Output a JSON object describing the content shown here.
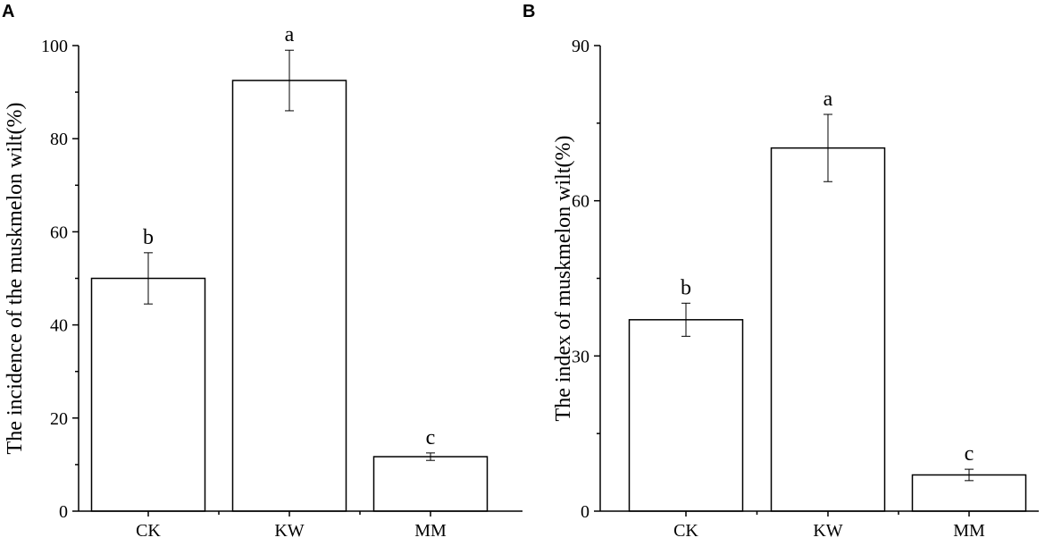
{
  "chart_data": [
    {
      "panel": "A",
      "type": "bar",
      "categories": [
        "CK",
        "KW",
        "MM"
      ],
      "values": [
        50,
        92.5,
        11.7
      ],
      "errors": [
        5.5,
        6.5,
        0.8
      ],
      "significance": [
        "b",
        "a",
        "c"
      ],
      "title": "",
      "xlabel": "",
      "ylabel": "The incidence of the muskmelon wilt(%)",
      "ylim": [
        0,
        100
      ],
      "yticks": [
        0,
        20,
        40,
        60,
        80,
        100
      ],
      "grid": false
    },
    {
      "panel": "B",
      "type": "bar",
      "categories": [
        "CK",
        "KW",
        "MM"
      ],
      "values": [
        37,
        70.2,
        7
      ],
      "errors": [
        3.2,
        6.5,
        1.1
      ],
      "significance": [
        "b",
        "a",
        "c"
      ],
      "title": "",
      "xlabel": "",
      "ylabel": "The index of muskmelon wilt(%)",
      "ylim": [
        0,
        90
      ],
      "yticks": [
        0,
        30,
        60,
        90
      ],
      "grid": false
    }
  ]
}
